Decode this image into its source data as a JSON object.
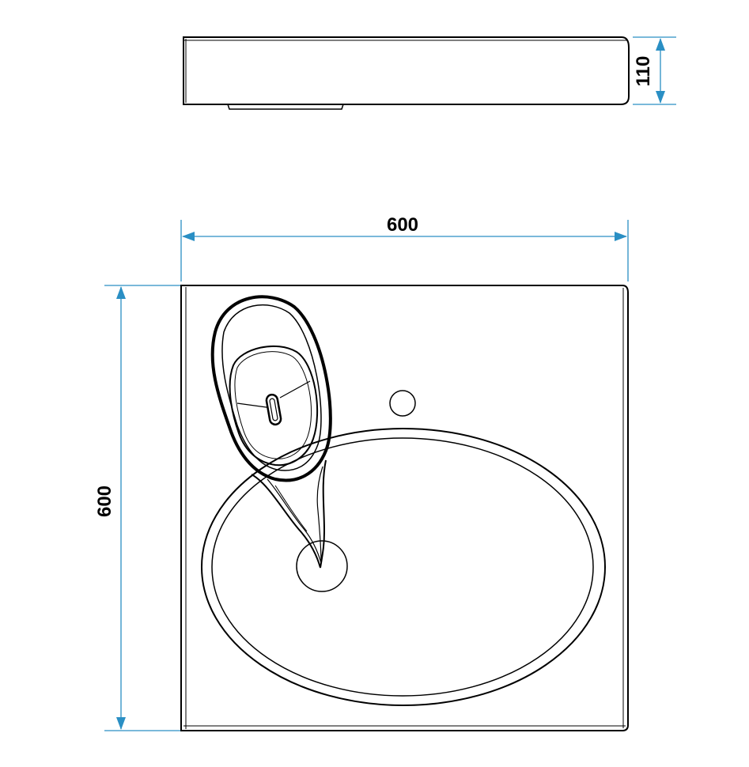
{
  "dimensions": {
    "height_side": "110",
    "width_top": "600",
    "depth_left": "600"
  },
  "colors": {
    "dimension_line": "#2a8fc4",
    "outline": "#000000",
    "background": "#ffffff"
  }
}
